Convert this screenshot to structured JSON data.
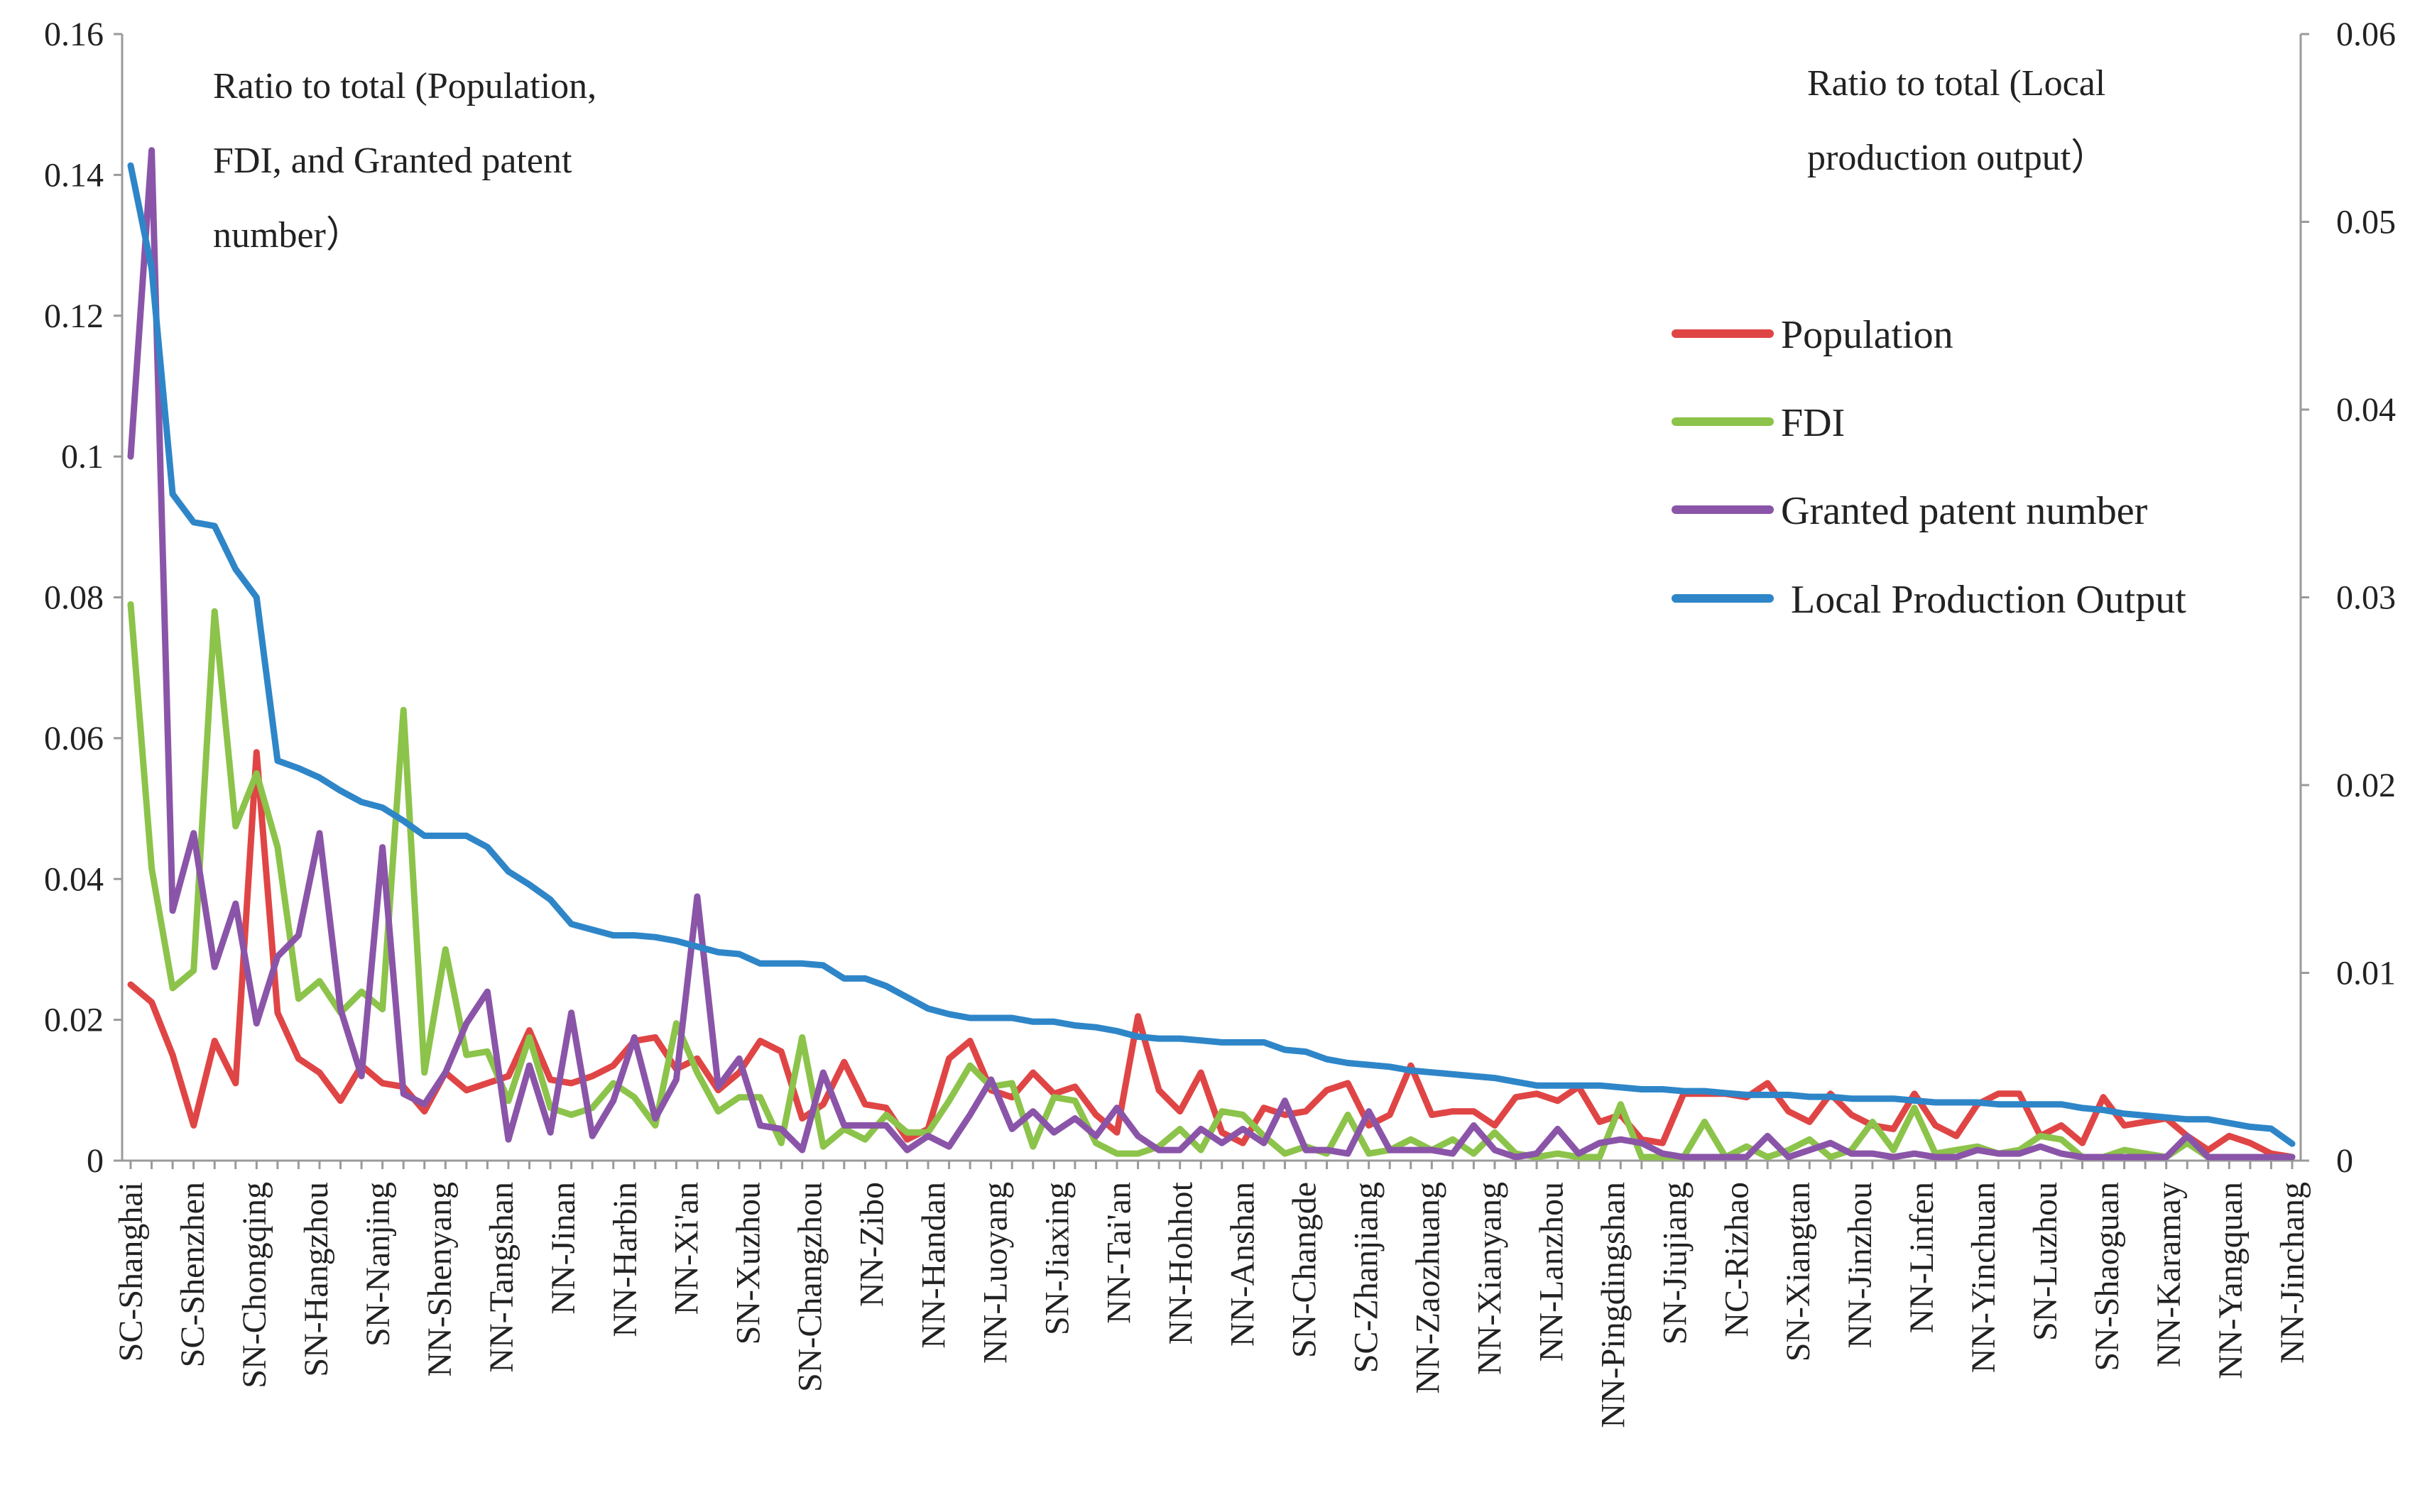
{
  "chart_data": {
    "type": "line",
    "left_axis_note": [
      "Ratio to total (Population,",
      "FDI, and Granted patent",
      "number）"
    ],
    "right_axis_note": [
      "Ratio to total (Local",
      "production output）"
    ],
    "ylim_left": [
      0,
      0.16
    ],
    "yticks_left": [
      "0",
      "0.02",
      "0.04",
      "0.06",
      "0.08",
      "0.1",
      "0.12",
      "0.14",
      "0.16"
    ],
    "ylim_right": [
      0,
      0.06
    ],
    "yticks_right": [
      "0",
      "0.01",
      "0.02",
      "0.03",
      "0.04",
      "0.05",
      "0.06"
    ],
    "n_points": 104,
    "x_labels": [
      "SC-Shanghai",
      "SC-Shenzhen",
      "SN-Chongqing",
      "SN-Hangzhou",
      "SN-Nanjing",
      "NN-Shenyang",
      "NN-Tangshan",
      "NN-Jinan",
      "NN-Harbin",
      "NN-Xi'an",
      "SN-Xuzhou",
      "SN-Changzhou",
      "NN-Zibo",
      "NN-Handan",
      "NN-Luoyang",
      "SN-Jiaxing",
      "NN-Tai'an",
      "NN-Hohhot",
      "NN-Anshan",
      "SN-Changde",
      "SC-Zhanjiang",
      "NN-Zaozhuang",
      "NN-Xianyang",
      "NN-Lanzhou",
      "NN-Pingdingshan",
      "SN-Jiujiang",
      "NC-Rizhao",
      "SN-Xiangtan",
      "NN-Jinzhou",
      "NN-Linfen",
      "NN-Yinchuan",
      "SN-Luzhou",
      "SN-Shaoguan",
      "NN-Karamay",
      "NN-Yangquan",
      "NN-Jinchang"
    ],
    "series": [
      {
        "name": "Population",
        "axis": "left",
        "color": "#e04545",
        "values": [
          0.025,
          0.0225,
          0.015,
          0.005,
          0.017,
          0.011,
          0.058,
          0.021,
          0.0145,
          0.0125,
          0.0085,
          0.0135,
          0.011,
          0.0105,
          0.007,
          0.0125,
          0.01,
          0.011,
          0.012,
          0.0185,
          0.0115,
          0.011,
          0.012,
          0.0135,
          0.017,
          0.0175,
          0.013,
          0.0145,
          0.01,
          0.0125,
          0.017,
          0.0155,
          0.006,
          0.008,
          0.014,
          0.008,
          0.0075,
          0.003,
          0.0045,
          0.0145,
          0.017,
          0.01,
          0.009,
          0.0125,
          0.0095,
          0.0105,
          0.0065,
          0.004,
          0.0205,
          0.01,
          0.007,
          0.0125,
          0.004,
          0.0025,
          0.0075,
          0.0065,
          0.007,
          0.01,
          0.011,
          0.005,
          0.0065,
          0.0135,
          0.0065,
          0.007,
          0.007,
          0.005,
          0.009,
          0.0095,
          0.0085,
          0.0105,
          0.0055,
          0.0065,
          0.003,
          0.0025,
          0.0095,
          0.0095,
          0.0095,
          0.009,
          0.011,
          0.007,
          0.0055,
          0.0095,
          0.0065,
          0.005,
          0.0045,
          0.0095,
          0.005,
          0.0035,
          0.008,
          0.0095,
          0.0095,
          0.0035,
          0.005,
          0.0025,
          0.009,
          0.005,
          0.0055,
          0.006,
          0.0035,
          0.0015,
          0.0035,
          0.0025,
          0.001,
          0.0005
        ]
      },
      {
        "name": "FDI",
        "axis": "left",
        "color": "#8cc34a",
        "values": [
          0.079,
          0.0415,
          0.0245,
          0.027,
          0.078,
          0.0475,
          0.055,
          0.0445,
          0.023,
          0.0255,
          0.021,
          0.024,
          0.0215,
          0.064,
          0.0125,
          0.03,
          0.015,
          0.0155,
          0.0085,
          0.0175,
          0.0075,
          0.0065,
          0.0075,
          0.011,
          0.009,
          0.005,
          0.0195,
          0.0125,
          0.007,
          0.009,
          0.009,
          0.0025,
          0.0175,
          0.002,
          0.0045,
          0.003,
          0.0065,
          0.004,
          0.004,
          0.0085,
          0.0135,
          0.0105,
          0.011,
          0.002,
          0.009,
          0.0085,
          0.0025,
          0.001,
          0.001,
          0.002,
          0.0045,
          0.0015,
          0.007,
          0.0065,
          0.0035,
          0.001,
          0.002,
          0.001,
          0.0065,
          0.001,
          0.0015,
          0.003,
          0.0015,
          0.003,
          0.001,
          0.004,
          0.001,
          0.0005,
          0.001,
          0.0005,
          0.0005,
          0.008,
          0.0005,
          0.0005,
          0.0005,
          0.0055,
          0.0005,
          0.002,
          0.0005,
          0.0015,
          0.003,
          0.0005,
          0.0015,
          0.0055,
          0.0015,
          0.0075,
          0.001,
          0.0015,
          0.002,
          0.001,
          0.0015,
          0.0035,
          0.003,
          0.0005,
          0.0005,
          0.0015,
          0.001,
          0.0005,
          0.0025,
          0.0005,
          0.0005,
          0.0005,
          0.0005,
          0.0005
        ]
      },
      {
        "name": "Granted patent number",
        "axis": "left",
        "color": "#8a55a8",
        "values": [
          0.1,
          0.1435,
          0.0355,
          0.0465,
          0.0275,
          0.0365,
          0.0195,
          0.029,
          0.032,
          0.0465,
          0.0215,
          0.012,
          0.0445,
          0.0095,
          0.008,
          0.0125,
          0.0195,
          0.024,
          0.003,
          0.0135,
          0.004,
          0.021,
          0.0035,
          0.0085,
          0.0175,
          0.006,
          0.0115,
          0.0375,
          0.0105,
          0.0145,
          0.005,
          0.0045,
          0.0015,
          0.0125,
          0.005,
          0.005,
          0.005,
          0.0015,
          0.0035,
          0.002,
          0.0065,
          0.0115,
          0.0045,
          0.007,
          0.004,
          0.006,
          0.0035,
          0.0075,
          0.0035,
          0.0015,
          0.0015,
          0.0045,
          0.0025,
          0.0045,
          0.0025,
          0.0085,
          0.0015,
          0.0015,
          0.001,
          0.007,
          0.0015,
          0.0015,
          0.0015,
          0.001,
          0.005,
          0.0015,
          0.0005,
          0.001,
          0.0045,
          0.001,
          0.0025,
          0.003,
          0.0025,
          0.001,
          0.0005,
          0.0005,
          0.0005,
          0.0005,
          0.0035,
          0.0005,
          0.0015,
          0.0025,
          0.001,
          0.001,
          0.0005,
          0.001,
          0.0005,
          0.0005,
          0.0015,
          0.001,
          0.001,
          0.002,
          0.001,
          0.0005,
          0.0005,
          0.0005,
          0.0005,
          0.0005,
          0.0035,
          0.0005,
          0.0005,
          0.0005,
          0.0005,
          0.0005
        ]
      },
      {
        "name": "Local Production Output",
        "axis": "right",
        "color": "#2e86c8",
        "values": [
          0.053,
          0.0475,
          0.0355,
          0.034,
          0.0338,
          0.0315,
          0.03,
          0.0213,
          0.0209,
          0.0204,
          0.0197,
          0.0191,
          0.0188,
          0.0181,
          0.0173,
          0.0173,
          0.0173,
          0.0167,
          0.0154,
          0.0147,
          0.0139,
          0.0126,
          0.0123,
          0.012,
          0.012,
          0.0119,
          0.0117,
          0.0114,
          0.0111,
          0.011,
          0.0105,
          0.0105,
          0.0105,
          0.0104,
          0.0097,
          0.0097,
          0.0093,
          0.0087,
          0.0081,
          0.0078,
          0.0076,
          0.0076,
          0.0076,
          0.0074,
          0.0074,
          0.0072,
          0.0071,
          0.0069,
          0.0066,
          0.0065,
          0.0065,
          0.0064,
          0.0063,
          0.0063,
          0.0063,
          0.0059,
          0.0058,
          0.0054,
          0.0052,
          0.0051,
          0.005,
          0.0048,
          0.0047,
          0.0046,
          0.0045,
          0.0044,
          0.0042,
          0.004,
          0.004,
          0.004,
          0.004,
          0.0039,
          0.0038,
          0.0038,
          0.0037,
          0.0037,
          0.0036,
          0.0035,
          0.0035,
          0.0035,
          0.0034,
          0.0034,
          0.0033,
          0.0033,
          0.0033,
          0.0032,
          0.0031,
          0.0031,
          0.0031,
          0.003,
          0.003,
          0.003,
          0.003,
          0.0028,
          0.0027,
          0.0025,
          0.0024,
          0.0023,
          0.0022,
          0.0022,
          0.002,
          0.0018,
          0.0017,
          0.0009
        ]
      }
    ]
  }
}
